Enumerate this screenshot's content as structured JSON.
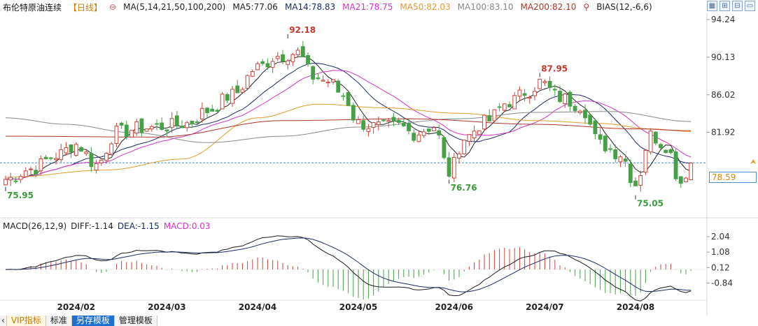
{
  "header": {
    "title": "布伦特原油连续",
    "period": "【日线】",
    "ma_params": "MA(5,14,21,50,100,200)",
    "indicators": [
      {
        "label": "MA5:77.06",
        "color": "#222222"
      },
      {
        "label": "MA14:78.83",
        "color": "#1a2a66"
      },
      {
        "label": "MA21:78.75",
        "color": "#d633c8"
      },
      {
        "label": "MA50:82.03",
        "color": "#e39a2b"
      },
      {
        "label": "MA100:83.10",
        "color": "#888888"
      },
      {
        "label": "MA200:82.10",
        "color": "#b0332a"
      }
    ],
    "bias": "BIAS(12,-6,6)"
  },
  "toolbar_icons": [
    "grid-icon",
    "zoom-in-icon",
    "zoom-out-icon",
    "expand-icon"
  ],
  "current_price": "78.59",
  "macd_header": {
    "params": "MACD(26,12,9)",
    "diff": "DIFF:-1.14",
    "dea": "DEA:-1.15",
    "macd": "MACD:0.03"
  },
  "bottom_tabs": [
    {
      "label": "VIP指标"
    },
    {
      "label": "标准"
    },
    {
      "label": "另存模板"
    },
    {
      "label": "管理模板"
    }
  ],
  "chart_data": [
    {
      "type": "candlestick",
      "y_ticks": [
        "94.24",
        "90.13",
        "86.02",
        "81.92",
        "78.59"
      ],
      "ylim": [
        73.5,
        95
      ],
      "x_ticks": [
        "2024/02",
        "2024/03",
        "2024/04",
        "2024/05",
        "2024/06",
        "2024/07",
        "2024/08"
      ],
      "annotations": [
        {
          "text": "75.95",
          "x_index": 0,
          "value": 75.95,
          "kind": "low"
        },
        {
          "text": "92.18",
          "x_index": 56,
          "value": 92.18,
          "kind": "high"
        },
        {
          "text": "76.76",
          "x_index": 88,
          "value": 76.76,
          "kind": "low"
        },
        {
          "text": "87.95",
          "x_index": 106,
          "value": 87.95,
          "kind": "high"
        },
        {
          "text": "75.05",
          "x_index": 125,
          "value": 75.05,
          "kind": "low"
        }
      ],
      "close_anchors": [
        [
          0,
          76.8
        ],
        [
          5,
          77.9
        ],
        [
          10,
          79.4
        ],
        [
          14,
          80.6
        ],
        [
          18,
          78.4
        ],
        [
          22,
          81.9
        ],
        [
          27,
          82.4
        ],
        [
          32,
          82.6
        ],
        [
          36,
          82.9
        ],
        [
          40,
          84.3
        ],
        [
          45,
          86.0
        ],
        [
          50,
          89.0
        ],
        [
          54,
          90.3
        ],
        [
          58,
          90.6
        ],
        [
          61,
          88.0
        ],
        [
          64,
          87.5
        ],
        [
          67,
          86.0
        ],
        [
          70,
          82.9
        ],
        [
          74,
          82.5
        ],
        [
          78,
          82.6
        ],
        [
          81,
          81.8
        ],
        [
          85,
          82.6
        ],
        [
          88,
          77.5
        ],
        [
          91,
          81.3
        ],
        [
          95,
          83.0
        ],
        [
          100,
          85.3
        ],
        [
          104,
          86.5
        ],
        [
          106,
          87.4
        ],
        [
          110,
          85.7
        ],
        [
          114,
          84.9
        ],
        [
          118,
          80.6
        ],
        [
          122,
          79.6
        ],
        [
          125,
          76.3
        ],
        [
          128,
          81.6
        ],
        [
          131,
          80.5
        ],
        [
          134,
          76.5
        ],
        [
          136,
          78.6
        ]
      ],
      "ma_series": [
        {
          "name": "MA5",
          "color": "#222222",
          "period": 5
        },
        {
          "name": "MA14",
          "color": "#1a2a66",
          "period": 14
        },
        {
          "name": "MA21",
          "color": "#d633c8",
          "period": 21
        },
        {
          "name": "MA50",
          "color": "#e39a2b",
          "period": 50
        },
        {
          "name": "MA100",
          "color": "#888888",
          "period": 100
        },
        {
          "name": "MA200",
          "color": "#b0332a",
          "period": 200
        }
      ],
      "ma_anchors": {
        "MA50": [
          [
            0,
            77.0
          ],
          [
            20,
            77.8
          ],
          [
            35,
            79.0
          ],
          [
            50,
            83.5
          ],
          [
            62,
            85.0
          ],
          [
            75,
            84.6
          ],
          [
            90,
            84.0
          ],
          [
            105,
            83.2
          ],
          [
            118,
            82.9
          ],
          [
            128,
            82.3
          ],
          [
            136,
            82.0
          ]
        ],
        "MA100": [
          [
            0,
            83.5
          ],
          [
            12,
            82.8
          ],
          [
            25,
            81.9
          ],
          [
            40,
            80.8
          ],
          [
            55,
            81.5
          ],
          [
            70,
            82.5
          ],
          [
            90,
            83.4
          ],
          [
            105,
            84.1
          ],
          [
            120,
            84.2
          ],
          [
            136,
            83.1
          ]
        ],
        "MA200": [
          [
            0,
            81.5
          ],
          [
            30,
            81.4
          ],
          [
            55,
            83.2
          ],
          [
            80,
            83.4
          ],
          [
            105,
            82.8
          ],
          [
            125,
            82.3
          ],
          [
            136,
            82.1
          ]
        ]
      },
      "current_price": 78.59
    },
    {
      "type": "macd",
      "y_ticks": [
        "2.04",
        "1.08",
        "0.12",
        "-0.84"
      ],
      "ylim": [
        -1.6,
        2.3
      ],
      "diff_color": "#1a1a1a",
      "dea_color": "#1a2a66",
      "bar_up_color": "#c8453b",
      "bar_down_color": "#44a144"
    }
  ]
}
